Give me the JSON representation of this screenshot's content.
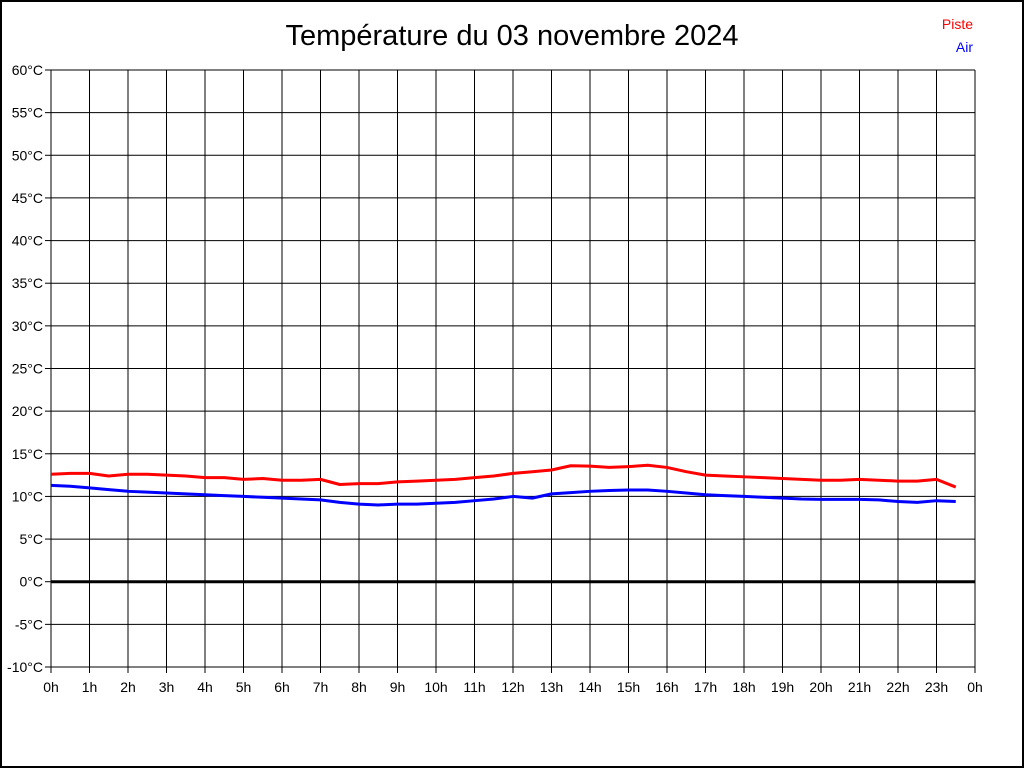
{
  "chart": {
    "title": "Température du 03 novembre 2024",
    "legend": {
      "items": [
        {
          "label": "Piste",
          "color": "#ff0000"
        },
        {
          "label": "Air",
          "color": "#0000ff"
        }
      ]
    }
  },
  "chart_data": {
    "type": "line",
    "title": "Température du 03 novembre 2024",
    "xlabel": "",
    "ylabel": "",
    "xlim": [
      0,
      24
    ],
    "ylim": [
      -10,
      60
    ],
    "y_tick_step": 5,
    "grid": true,
    "legend_position": "top-right",
    "zero_line": {
      "value": 0,
      "color": "#000000",
      "width": 3
    },
    "y_tick_labels": [
      "60°C",
      "55°C",
      "50°C",
      "45°C",
      "40°C",
      "35°C",
      "30°C",
      "25°C",
      "20°C",
      "15°C",
      "10°C",
      "5°C",
      "0°C",
      "-5°C",
      "-10°C"
    ],
    "x_tick_labels": [
      "0h",
      "1h",
      "2h",
      "3h",
      "4h",
      "5h",
      "6h",
      "7h",
      "8h",
      "9h",
      "10h",
      "11h",
      "12h",
      "13h",
      "14h",
      "15h",
      "16h",
      "17h",
      "18h",
      "19h",
      "20h",
      "21h",
      "22h",
      "23h",
      "0h"
    ],
    "x": [
      0,
      0.5,
      1,
      1.5,
      2,
      2.5,
      3,
      3.5,
      4,
      4.5,
      5,
      5.5,
      6,
      6.5,
      7,
      7.5,
      8,
      8.5,
      9,
      9.5,
      10,
      10.5,
      11,
      11.5,
      12,
      12.5,
      13,
      13.5,
      14,
      14.5,
      15,
      15.5,
      16,
      16.5,
      17,
      17.5,
      18,
      18.5,
      19,
      19.5,
      20,
      20.5,
      21,
      21.5,
      22,
      22.5,
      23,
      23.5
    ],
    "series": [
      {
        "name": "Piste",
        "color": "#ff0000",
        "values": [
          12.6,
          12.7,
          12.7,
          12.4,
          12.6,
          12.6,
          12.5,
          12.4,
          12.2,
          12.2,
          12.0,
          12.1,
          11.9,
          11.9,
          12.0,
          11.4,
          11.5,
          11.5,
          11.7,
          11.8,
          11.9,
          12.0,
          12.2,
          12.4,
          12.7,
          12.9,
          13.1,
          13.6,
          13.55,
          13.4,
          13.5,
          13.65,
          13.4,
          12.9,
          12.5,
          12.4,
          12.3,
          12.2,
          12.1,
          12.0,
          11.9,
          11.9,
          12.0,
          11.9,
          11.8,
          11.8,
          12.0,
          11.1
        ]
      },
      {
        "name": "Air",
        "color": "#0000ff",
        "values": [
          11.3,
          11.2,
          11.0,
          10.8,
          10.6,
          10.5,
          10.4,
          10.3,
          10.2,
          10.1,
          10.0,
          9.9,
          9.8,
          9.7,
          9.6,
          9.3,
          9.1,
          9.0,
          9.1,
          9.1,
          9.2,
          9.3,
          9.5,
          9.7,
          10.0,
          9.8,
          10.3,
          10.45,
          10.6,
          10.7,
          10.75,
          10.75,
          10.6,
          10.4,
          10.2,
          10.1,
          10.0,
          9.9,
          9.8,
          9.7,
          9.65,
          9.65,
          9.65,
          9.6,
          9.4,
          9.3,
          9.5,
          9.4
        ]
      }
    ]
  }
}
